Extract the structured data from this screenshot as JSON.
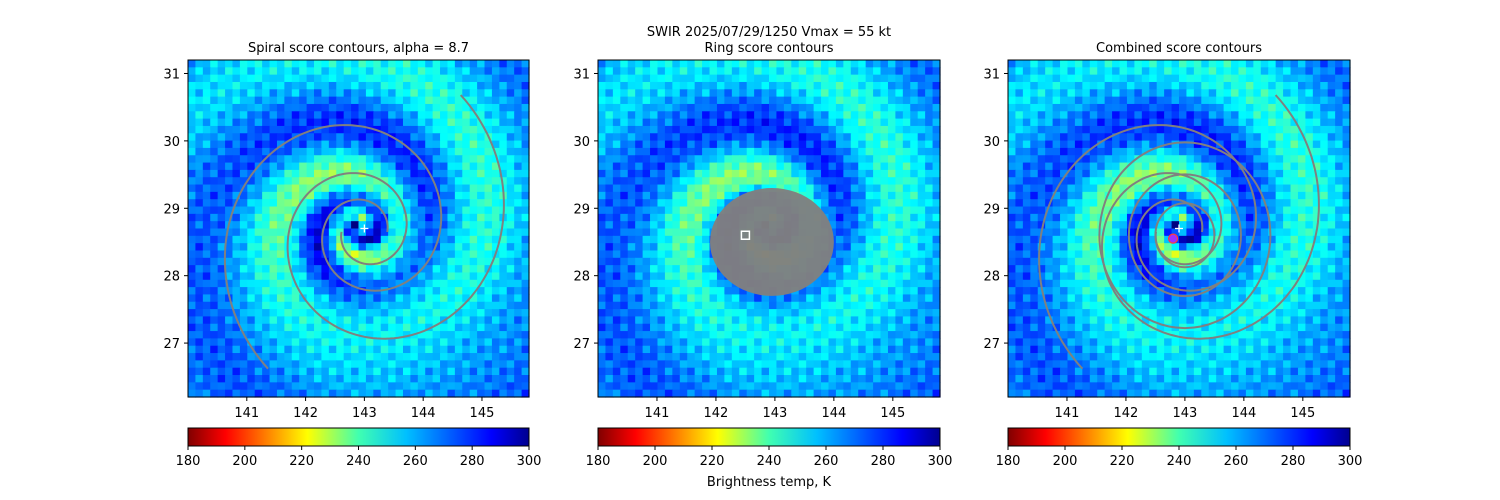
{
  "figure": {
    "suptitle_line1": "SWIR  2025/07/29/1250    Vmax = 55 kt",
    "colorbar_label": "Brightness temp, K"
  },
  "colors": {
    "contour": "#808080",
    "marker": "#ffffff",
    "combined_center_marker": "#9b30ff"
  },
  "colormap": "jet_r",
  "chart_data": [
    {
      "type": "heatmap",
      "title": "Spiral score contours, alpha =  8.7",
      "x_ticks": [
        141,
        142,
        143,
        144,
        145
      ],
      "y_ticks": [
        27,
        28,
        29,
        30,
        31
      ],
      "xlim": [
        140.0,
        145.8
      ],
      "ylim": [
        26.2,
        31.2
      ],
      "colorbar_ticks": [
        180,
        200,
        220,
        240,
        260,
        280,
        300
      ],
      "colorbar_range": [
        180,
        300
      ],
      "center_marker": {
        "symbol": "plus",
        "lon": 143.0,
        "lat": 28.7
      },
      "overlay": "spiral score contours"
    },
    {
      "type": "heatmap",
      "title": "Ring score contours",
      "x_ticks": [
        141,
        142,
        143,
        144,
        145
      ],
      "y_ticks": [
        27,
        28,
        29,
        30,
        31
      ],
      "xlim": [
        140.0,
        145.8
      ],
      "ylim": [
        26.2,
        31.2
      ],
      "colorbar_ticks": [
        180,
        200,
        220,
        240,
        260,
        280,
        300
      ],
      "colorbar_range": [
        180,
        300
      ],
      "center_marker": {
        "symbol": "square",
        "lon": 142.5,
        "lat": 28.6
      },
      "overlay": "ring score contours"
    },
    {
      "type": "heatmap",
      "title": "Combined score contours",
      "x_ticks": [
        141,
        142,
        143,
        144,
        145
      ],
      "y_ticks": [
        27,
        28,
        29,
        30,
        31
      ],
      "xlim": [
        140.0,
        145.8
      ],
      "ylim": [
        26.2,
        31.2
      ],
      "colorbar_ticks": [
        180,
        200,
        220,
        240,
        260,
        280,
        300
      ],
      "colorbar_range": [
        180,
        300
      ],
      "center_marker": {
        "symbol": "plus",
        "lon": 142.9,
        "lat": 28.7
      },
      "secondary_marker": {
        "symbol": "circle",
        "lon": 142.8,
        "lat": 28.55
      },
      "overlay": "combined score contours"
    }
  ]
}
